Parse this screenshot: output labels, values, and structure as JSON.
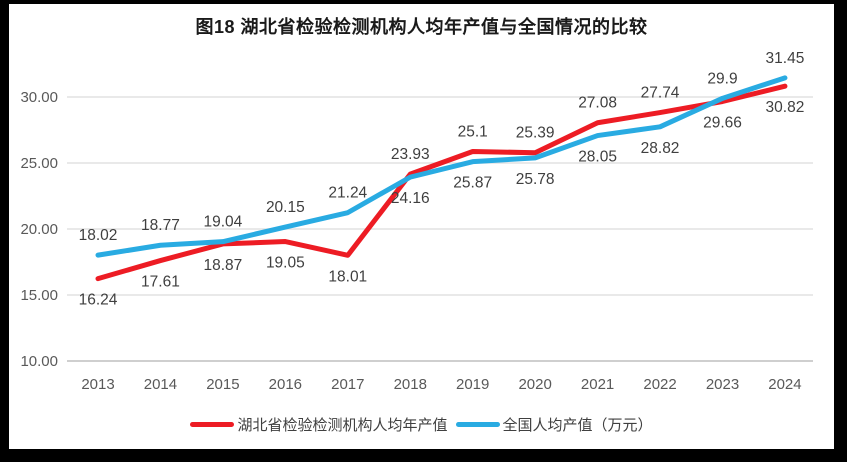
{
  "header": {
    "title": "图18 湖北省检验检测机构人均年产值与全国情况的比较"
  },
  "chart_data": {
    "type": "line",
    "title": "图18 湖北省检验检测机构人均年产值与全国情况的比较",
    "categories": [
      "2013",
      "2014",
      "2015",
      "2016",
      "2017",
      "2018",
      "2019",
      "2020",
      "2021",
      "2022",
      "2023",
      "2024"
    ],
    "series": [
      {
        "name": "湖北省检验检测机构人均年产值",
        "color": "#ED1C24",
        "values": [
          16.24,
          17.61,
          18.87,
          19.05,
          18.01,
          24.16,
          25.87,
          25.78,
          28.05,
          28.82,
          29.66,
          30.82
        ],
        "labels": [
          "16.24",
          "17.61",
          "18.87",
          "19.05",
          "18.01",
          "24.16",
          "25.87",
          "25.78",
          "28.05",
          "28.82",
          "29.66",
          "30.82"
        ],
        "label_position": "below"
      },
      {
        "name": "全国人均产值（万元）",
        "color": "#29ABE2",
        "values": [
          18.02,
          18.77,
          19.04,
          20.15,
          21.24,
          23.93,
          25.1,
          25.39,
          27.08,
          27.74,
          29.9,
          31.45
        ],
        "labels": [
          "18.02",
          "18.77",
          "19.04",
          "20.15",
          "21.24",
          "23.93",
          "25.1",
          "25.39",
          "27.08",
          "27.74",
          "29.9",
          "31.45"
        ],
        "label_position": "above"
      }
    ],
    "xlabel": "",
    "ylabel": "",
    "ylim": [
      10,
      32.5
    ],
    "yticks": [
      10,
      15,
      20,
      25,
      30
    ],
    "ytick_labels": [
      "10.00",
      "15.00",
      "20.00",
      "25.00",
      "30.00"
    ],
    "grid": true,
    "legend_position": "bottom",
    "axis_label_color": "#595959",
    "grid_color": "#E2E2E2",
    "baseline_color": "#BFBFBF",
    "data_label_color": "#3F3F3F",
    "frame_color": "#000000",
    "background_color": "#FFFFFF"
  }
}
